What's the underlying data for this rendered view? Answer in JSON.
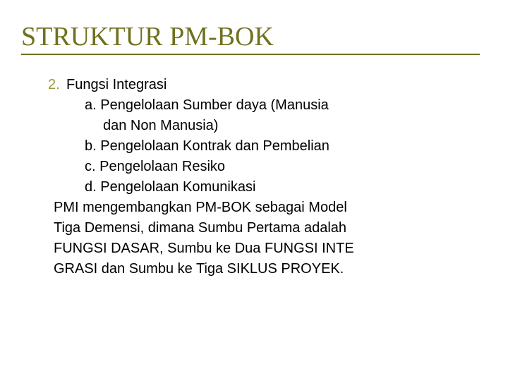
{
  "colors": {
    "title_color": "#707020",
    "marker_color": "#9a9a3a",
    "text_color": "#000000",
    "background_color": "#ffffff",
    "underline_color": "#707020"
  },
  "typography": {
    "title_font": "Times New Roman",
    "title_size_pt": 38,
    "body_font": "Verdana",
    "body_size_pt": 20
  },
  "title": "STRUKTUR PM-BOK",
  "list": {
    "number": "2.",
    "heading": "Fungsi Integrasi",
    "items": {
      "a": "a. Pengelolaan Sumber daya (Manusia",
      "a_cont": "dan Non Manusia)",
      "b": "b. Pengelolaan Kontrak dan Pembelian",
      "c": "c. Pengelolaan Resiko",
      "d": "d. Pengelolaan Komunikasi"
    }
  },
  "paragraph": {
    "line1": " PMI mengembangkan PM-BOK sebagai Model",
    "line2": "Tiga Demensi, dimana Sumbu Pertama adalah",
    "line3": "FUNGSI DASAR, Sumbu ke Dua FUNGSI  INTE",
    "line4": "GRASI dan Sumbu ke Tiga SIKLUS PROYEK."
  }
}
